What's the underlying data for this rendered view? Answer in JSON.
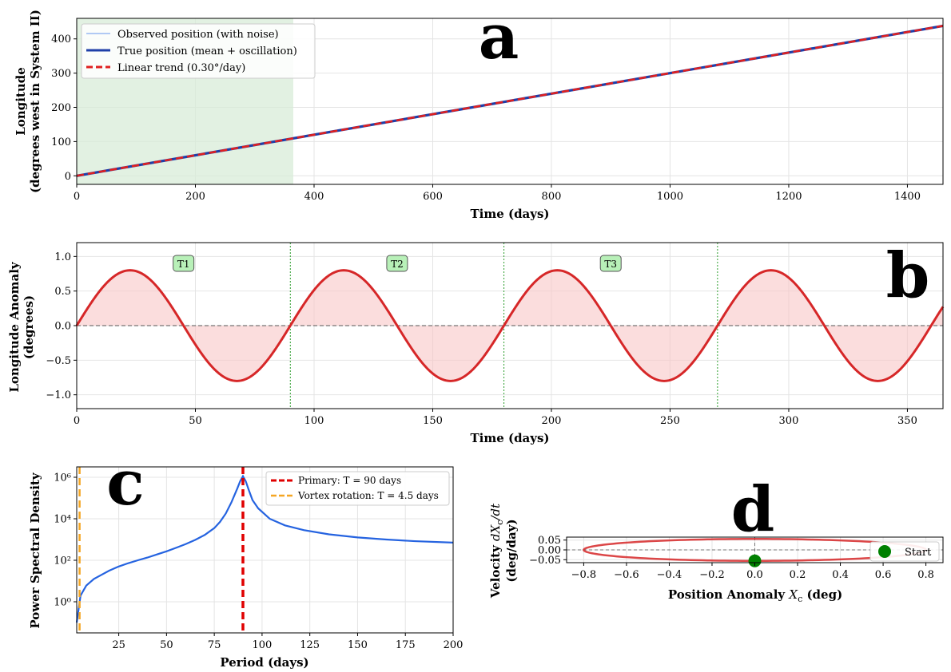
{
  "colors": {
    "observed": "#6495ed",
    "true": "#1f3fa8",
    "trend": "#e02020",
    "anomaly": "#d62728",
    "anomaly_fill": "#f8c6c6",
    "shade": "#d8ecd8",
    "psd": "#2563e0",
    "primary": "#e00000",
    "vortex": "#f5a623",
    "phase": "#d62728",
    "start": "#008000",
    "period_box": "#b8f0b8"
  },
  "chart_data": [
    {
      "id": "a",
      "type": "line",
      "panel_letter": "a",
      "xlabel": "Time (days)",
      "ylabel_lines": [
        "Longitude",
        "(degrees west in System II)"
      ],
      "xlim": [
        0,
        1460
      ],
      "ylim": [
        -25,
        460
      ],
      "xticks": [
        0,
        200,
        400,
        600,
        800,
        1000,
        1200,
        1400
      ],
      "yticks": [
        0,
        100,
        200,
        300,
        400
      ],
      "shaded_range": [
        0,
        365
      ],
      "series": [
        {
          "name": "Observed position (with noise)",
          "style": "thin",
          "x": [
            0,
            1460
          ],
          "y": [
            0,
            438
          ]
        },
        {
          "name": "True position (mean + oscillation)",
          "style": "thick",
          "x": [
            0,
            1460
          ],
          "y": [
            0,
            438
          ]
        },
        {
          "name": "Linear trend (0.30°/day)",
          "style": "dashed",
          "x": [
            0,
            1460
          ],
          "y": [
            0,
            438
          ]
        }
      ],
      "legend": [
        "Observed position (with noise)",
        "True position (mean + oscillation)",
        "Linear trend (0.30°/day)"
      ],
      "legend_position": "top-left"
    },
    {
      "id": "b",
      "type": "line",
      "panel_letter": "b",
      "xlabel": "Time (days)",
      "ylabel_lines": [
        "Longitude Anomaly",
        "(degrees)"
      ],
      "xlim": [
        0,
        365
      ],
      "ylim": [
        -1.2,
        1.2
      ],
      "xticks": [
        0,
        50,
        100,
        150,
        200,
        250,
        300,
        350
      ],
      "yticks": [
        -1.0,
        -0.5,
        0.0,
        0.5,
        1.0
      ],
      "ytick_labels": [
        "−1.0",
        "−0.5",
        "0.0",
        "0.5",
        "1.0"
      ],
      "amplitude": 0.8,
      "period_days": 90,
      "period_markers": [
        90,
        180,
        270
      ],
      "period_labels": [
        {
          "text": "T1",
          "x": 45
        },
        {
          "text": "T2",
          "x": 135
        },
        {
          "text": "T3",
          "x": 225
        }
      ],
      "period_label_y": 0.9
    },
    {
      "id": "c",
      "type": "line",
      "panel_letter": "c",
      "xlabel": "Period (days)",
      "ylabel": "Power Spectral Density",
      "yscale": "log",
      "xlim": [
        3,
        200
      ],
      "ylim_log10": [
        -1.5,
        6.5
      ],
      "xticks": [
        25,
        50,
        75,
        100,
        125,
        150,
        175,
        200
      ],
      "yticks_log10": [
        0,
        2,
        4,
        6
      ],
      "ytick_labels": [
        "10⁰",
        "10²",
        "10⁴",
        "10⁶"
      ],
      "series": [
        {
          "name": "PSD",
          "x": [
            3,
            5,
            8,
            12,
            16,
            20,
            25,
            30,
            35,
            40,
            45,
            50,
            55,
            60,
            65,
            70,
            75,
            78,
            81,
            84,
            87,
            88.5,
            90,
            91.5,
            93,
            95,
            98,
            104,
            112,
            122,
            135,
            150,
            165,
            180,
            200
          ],
          "log10_y": [
            -1.0,
            0.3,
            0.78,
            1.1,
            1.3,
            1.5,
            1.7,
            1.86,
            2.0,
            2.13,
            2.28,
            2.43,
            2.6,
            2.78,
            2.98,
            3.22,
            3.55,
            3.85,
            4.25,
            4.8,
            5.45,
            5.8,
            6.05,
            5.8,
            5.4,
            4.9,
            4.5,
            4.0,
            3.68,
            3.45,
            3.25,
            3.1,
            3.0,
            2.92,
            2.85
          ]
        }
      ],
      "vlines": [
        {
          "name": "Primary: T = 90 days",
          "x": 90,
          "kind": "primary"
        },
        {
          "name": "Vortex rotation: T = 4.5 days",
          "x": 4.5,
          "kind": "vortex"
        }
      ],
      "legend_position": "top-right"
    },
    {
      "id": "d",
      "type": "scatter",
      "panel_letter": "d",
      "xlabel": "Position Anomaly Xc (deg)",
      "ylabel_lines": [
        "Velocity dXc/dt",
        "(deg/day)"
      ],
      "xlim": [
        -0.88,
        0.88
      ],
      "ylim": [
        -0.065,
        0.065
      ],
      "xticks": [
        -0.8,
        -0.6,
        -0.4,
        -0.2,
        0.0,
        0.2,
        0.4,
        0.6,
        0.8
      ],
      "xtick_labels": [
        "−0.8",
        "−0.6",
        "−0.4",
        "−0.2",
        "0.0",
        "0.2",
        "0.4",
        "0.6",
        "0.8"
      ],
      "yticks": [
        -0.05,
        0.0,
        0.05
      ],
      "ytick_labels": [
        "−0.05",
        "0.00",
        "0.05"
      ],
      "ellipse": {
        "amplitude": 0.8,
        "max_velocity": 0.0558
      },
      "start_point": {
        "x": 0.0,
        "y": -0.0558
      },
      "legend": [
        "Start"
      ],
      "legend_position": "right"
    }
  ]
}
